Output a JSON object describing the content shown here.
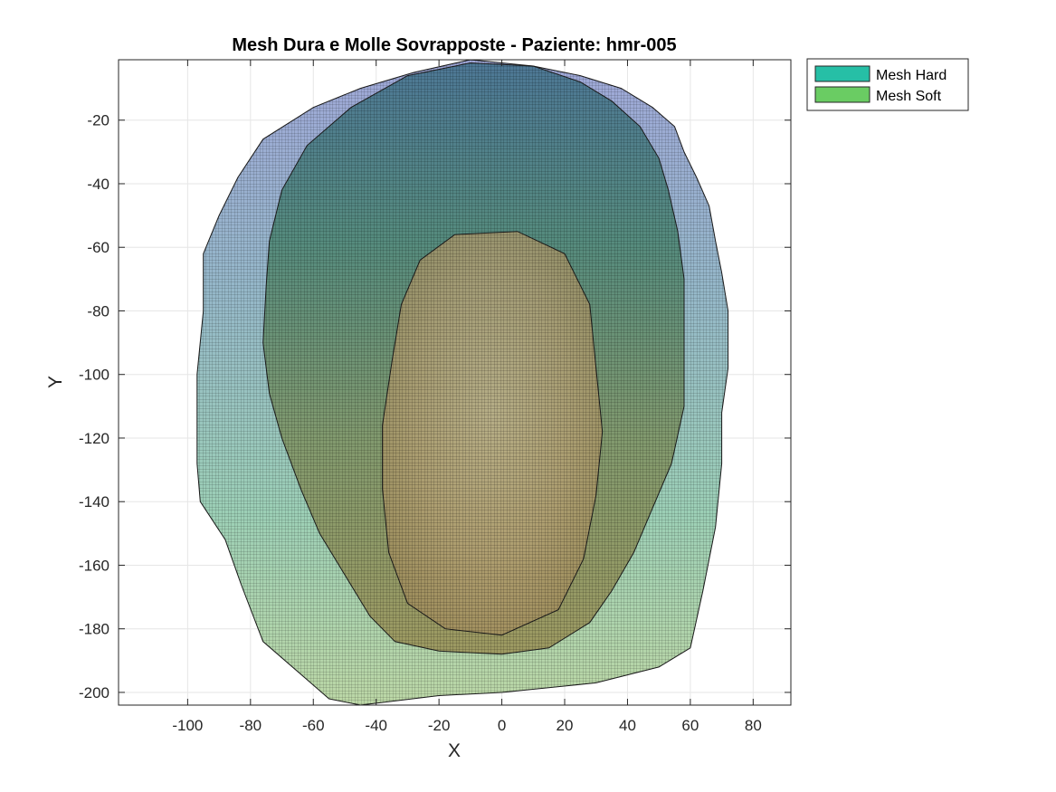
{
  "chart_data": {
    "type": "surface",
    "title": "Mesh Dura e Molle Sovrapposte - Paziente: hmr-005",
    "xlabel": "X",
    "ylabel": "Y",
    "xlim": [
      -122,
      92
    ],
    "ylim": [
      -204,
      -1
    ],
    "xticks": [
      -100,
      -80,
      -60,
      -40,
      -20,
      0,
      20,
      40,
      60,
      80
    ],
    "yticks": [
      -20,
      -40,
      -60,
      -80,
      -100,
      -120,
      -140,
      -160,
      -180,
      -200
    ],
    "grid": true,
    "legend_position": "outside top-right",
    "series": [
      {
        "name": "Mesh Hard",
        "color": "#26bfa6"
      },
      {
        "name": "Mesh Soft",
        "color": "#6acc63"
      }
    ],
    "soft_outline": [
      [
        -10,
        -1
      ],
      [
        10,
        -3
      ],
      [
        25,
        -6
      ],
      [
        38,
        -10
      ],
      [
        48,
        -16
      ],
      [
        55,
        -22
      ],
      [
        58,
        -30
      ],
      [
        62,
        -38
      ],
      [
        66,
        -47
      ],
      [
        68,
        -58
      ],
      [
        70,
        -68
      ],
      [
        72,
        -80
      ],
      [
        72,
        -98
      ],
      [
        70,
        -112
      ],
      [
        70,
        -128
      ],
      [
        68,
        -148
      ],
      [
        64,
        -168
      ],
      [
        60,
        -186
      ],
      [
        50,
        -192
      ],
      [
        30,
        -197
      ],
      [
        0,
        -200
      ],
      [
        -20,
        -201
      ],
      [
        -45,
        -204
      ],
      [
        -55,
        -202
      ],
      [
        -62,
        -196
      ],
      [
        -76,
        -184
      ],
      [
        -83,
        -166
      ],
      [
        -88,
        -152
      ],
      [
        -96,
        -140
      ],
      [
        -97,
        -128
      ],
      [
        -97,
        -100
      ],
      [
        -95,
        -80
      ],
      [
        -95,
        -62
      ],
      [
        -90,
        -50
      ],
      [
        -84,
        -38
      ],
      [
        -76,
        -26
      ],
      [
        -60,
        -16
      ],
      [
        -45,
        -10
      ],
      [
        -28,
        -5
      ]
    ],
    "hard_outline": [
      [
        -10,
        -2
      ],
      [
        10,
        -3
      ],
      [
        25,
        -8
      ],
      [
        35,
        -14
      ],
      [
        44,
        -22
      ],
      [
        50,
        -32
      ],
      [
        53,
        -42
      ],
      [
        56,
        -55
      ],
      [
        58,
        -70
      ],
      [
        58,
        -92
      ],
      [
        58,
        -110
      ],
      [
        54,
        -128
      ],
      [
        48,
        -142
      ],
      [
        42,
        -156
      ],
      [
        35,
        -168
      ],
      [
        28,
        -178
      ],
      [
        15,
        -186
      ],
      [
        0,
        -188
      ],
      [
        -20,
        -187
      ],
      [
        -34,
        -184
      ],
      [
        -42,
        -176
      ],
      [
        -50,
        -163
      ],
      [
        -58,
        -150
      ],
      [
        -64,
        -136
      ],
      [
        -70,
        -120
      ],
      [
        -74,
        -106
      ],
      [
        -76,
        -90
      ],
      [
        -75,
        -72
      ],
      [
        -74,
        -58
      ],
      [
        -70,
        -42
      ],
      [
        -62,
        -28
      ],
      [
        -48,
        -16
      ],
      [
        -30,
        -6
      ]
    ],
    "core_outline": [
      [
        -15,
        -56
      ],
      [
        5,
        -55
      ],
      [
        20,
        -62
      ],
      [
        28,
        -78
      ],
      [
        30,
        -98
      ],
      [
        32,
        -118
      ],
      [
        30,
        -138
      ],
      [
        26,
        -158
      ],
      [
        18,
        -174
      ],
      [
        0,
        -182
      ],
      [
        -18,
        -180
      ],
      [
        -30,
        -172
      ],
      [
        -36,
        -156
      ],
      [
        -38,
        -136
      ],
      [
        -38,
        -116
      ],
      [
        -35,
        -96
      ],
      [
        -32,
        -78
      ],
      [
        -26,
        -64
      ]
    ]
  }
}
